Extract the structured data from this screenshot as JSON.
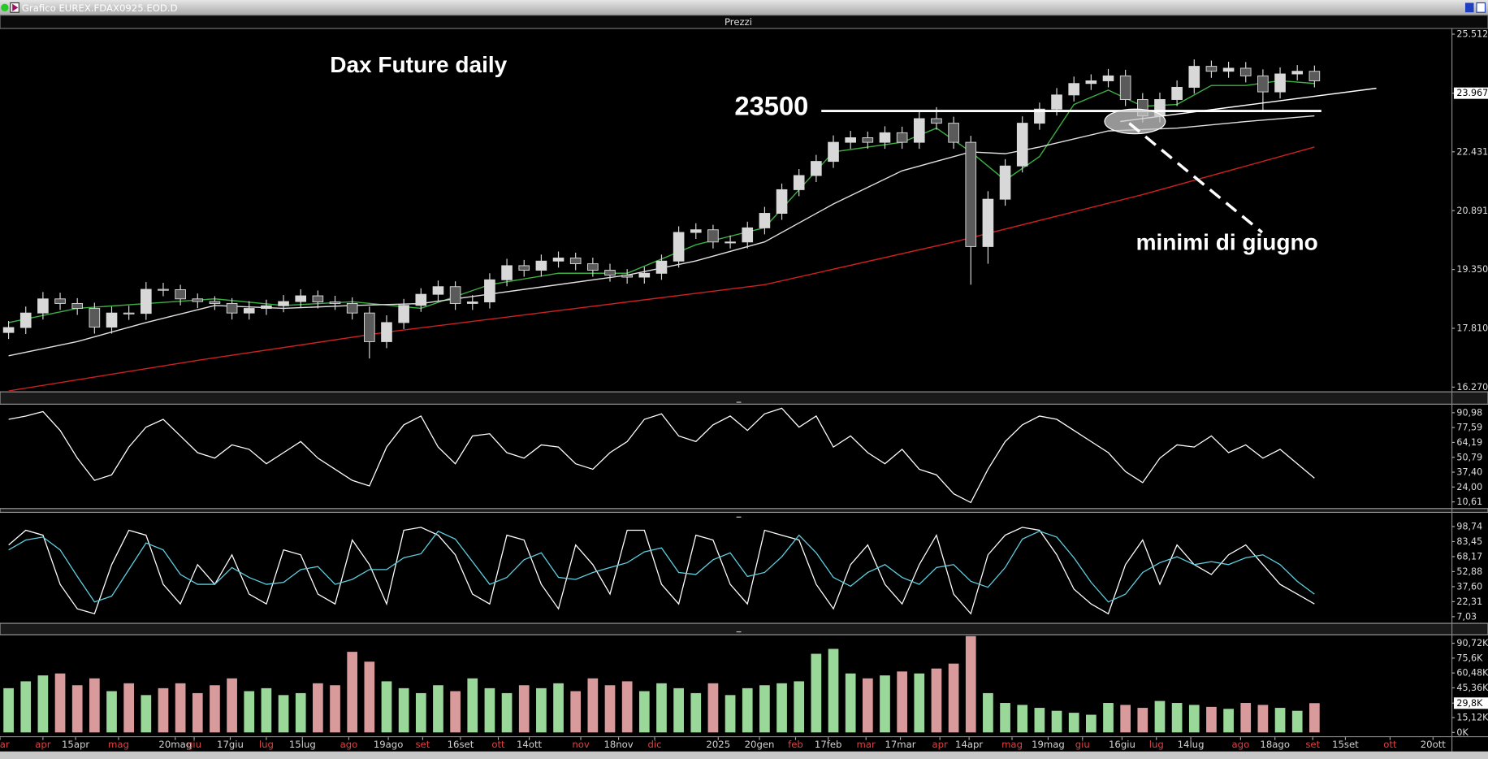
{
  "window": {
    "title": "Grafico EUREX.FDAX0925.EOD.D",
    "panel_title": "Prezzi"
  },
  "chart_data": [
    {
      "type": "candlestick",
      "title": "Dax Future daily",
      "callout": "minimi di giugno",
      "hline": 23500,
      "up_color": "#d8d8d8",
      "down_color": "#5a5a5a",
      "wick_color": "#d8d8d8",
      "xlim": [
        -0.5,
        84
      ],
      "xtick_color": "#d0d0d0",
      "xtick_month_color": "#e04040",
      "xticks": [
        {
          "value": -0.5,
          "label": "mar"
        },
        {
          "value": 2,
          "label": "apr"
        },
        {
          "value": 3.9,
          "label": "15apr"
        },
        {
          "value": 6.4,
          "label": "mag"
        },
        {
          "value": 9.7,
          "label": "20mag"
        },
        {
          "value": 10.8,
          "label": "giu"
        },
        {
          "value": 12.9,
          "label": "17giu"
        },
        {
          "value": 15,
          "label": "lug"
        },
        {
          "value": 17.1,
          "label": "15lug"
        },
        {
          "value": 19.8,
          "label": "ago"
        },
        {
          "value": 22.1,
          "label": "19ago"
        },
        {
          "value": 24.1,
          "label": "set"
        },
        {
          "value": 26.3,
          "label": "16set"
        },
        {
          "value": 28.5,
          "label": "ott"
        },
        {
          "value": 30.3,
          "label": "14ott"
        },
        {
          "value": 33.3,
          "label": "nov"
        },
        {
          "value": 35.5,
          "label": "18nov"
        },
        {
          "value": 37.6,
          "label": "dic"
        },
        {
          "value": 41.3,
          "label": "2025"
        },
        {
          "value": 43.7,
          "label": "20gen"
        },
        {
          "value": 45.8,
          "label": "feb"
        },
        {
          "value": 47.7,
          "label": "17feb"
        },
        {
          "value": 49.9,
          "label": "mar"
        },
        {
          "value": 51.9,
          "label": "17mar"
        },
        {
          "value": 54.2,
          "label": "apr"
        },
        {
          "value": 55.9,
          "label": "14apr"
        },
        {
          "value": 58.4,
          "label": "mag"
        },
        {
          "value": 60.5,
          "label": "19mag"
        },
        {
          "value": 62.5,
          "label": "giu"
        },
        {
          "value": 64.8,
          "label": "16giu"
        },
        {
          "value": 66.8,
          "label": "lug"
        },
        {
          "value": 68.8,
          "label": "14lug"
        },
        {
          "value": 71.7,
          "label": "ago"
        },
        {
          "value": 73.7,
          "label": "18ago"
        },
        {
          "value": 75.9,
          "label": "set"
        },
        {
          "value": 77.8,
          "label": "15set"
        },
        {
          "value": 80.4,
          "label": "ott"
        },
        {
          "value": 82.9,
          "label": "20ott"
        }
      ],
      "ylim": [
        16171,
        25661
      ],
      "yticks": [
        {
          "value": 25512,
          "label": "25.512"
        },
        {
          "value": 23967,
          "label": "23.967"
        },
        {
          "value": 22431,
          "label": "22.431"
        },
        {
          "value": 20891,
          "label": "20.891"
        },
        {
          "value": 19350,
          "label": "19.350"
        },
        {
          "value": 17810,
          "label": "17.810"
        },
        {
          "value": 16270,
          "label": "16.270"
        }
      ],
      "highlight_tick": 1,
      "open": [
        17700,
        17830,
        18210,
        18580,
        18460,
        18330,
        17840,
        18210,
        18200,
        18830,
        18820,
        18580,
        18510,
        18460,
        18210,
        18330,
        18400,
        18510,
        18660,
        18500,
        18460,
        18210,
        17460,
        17960,
        18410,
        18700,
        18900,
        18460,
        18500,
        19080,
        19450,
        19330,
        19570,
        19650,
        19500,
        19330,
        19200,
        19150,
        19250,
        19570,
        20320,
        20390,
        20070,
        20070,
        20440,
        20820,
        21440,
        21810,
        22180,
        22680,
        22800,
        22680,
        22930,
        22680,
        23300,
        23180,
        22680,
        19950,
        21190,
        22060,
        23180,
        23550,
        23920,
        24220,
        24290,
        24420,
        23800,
        23370,
        23800,
        24120,
        24670,
        24540,
        24620,
        24420,
        24000,
        24470,
        24540
      ],
      "high": [
        18000,
        18380,
        18760,
        18740,
        18600,
        18480,
        18380,
        18400,
        19020,
        19000,
        18950,
        18720,
        18650,
        18600,
        18520,
        18560,
        18680,
        18830,
        18800,
        18660,
        18620,
        18380,
        18150,
        18580,
        18860,
        19060,
        19040,
        18680,
        19250,
        19630,
        19600,
        19740,
        19820,
        19790,
        19660,
        19500,
        19360,
        19420,
        19740,
        20480,
        20560,
        20520,
        20240,
        20600,
        20990,
        21600,
        21980,
        22350,
        22860,
        22980,
        22960,
        23100,
        23090,
        23480,
        23600,
        23350,
        22850,
        21400,
        22240,
        23360,
        23720,
        24100,
        24400,
        24460,
        24600,
        24580,
        23970,
        23980,
        24300,
        24850,
        24820,
        24790,
        24780,
        24590,
        24640,
        24700,
        24690
      ],
      "low": [
        17530,
        17660,
        18040,
        18290,
        18160,
        17670,
        17670,
        18030,
        18030,
        18650,
        18410,
        18340,
        18290,
        18040,
        18040,
        18160,
        18230,
        18340,
        18330,
        18290,
        18040,
        17020,
        17290,
        17790,
        18240,
        18530,
        18290,
        18290,
        18330,
        18910,
        19160,
        19160,
        19400,
        19330,
        19160,
        19030,
        18980,
        18980,
        19080,
        19400,
        20150,
        19900,
        19900,
        19900,
        20270,
        20650,
        21270,
        21640,
        22010,
        22510,
        22510,
        22510,
        22510,
        22510,
        23010,
        22510,
        18950,
        19500,
        21020,
        21890,
        23010,
        23380,
        23750,
        24050,
        24120,
        23630,
        23200,
        23200,
        23630,
        23950,
        24370,
        24370,
        24250,
        23500,
        23830,
        24300,
        24120
      ],
      "close": [
        17830,
        18210,
        18580,
        18460,
        18330,
        17840,
        18210,
        18200,
        18830,
        18820,
        18580,
        18510,
        18460,
        18210,
        18330,
        18400,
        18510,
        18660,
        18500,
        18460,
        18210,
        17460,
        17960,
        18410,
        18700,
        18900,
        18460,
        18500,
        19080,
        19450,
        19330,
        19570,
        19650,
        19500,
        19330,
        19200,
        19150,
        19250,
        19570,
        20320,
        20390,
        20070,
        20070,
        20440,
        20820,
        21440,
        21810,
        22180,
        22680,
        22800,
        22680,
        22930,
        22680,
        23300,
        23180,
        22680,
        19950,
        21190,
        22060,
        23180,
        23550,
        23920,
        24220,
        24290,
        24420,
        23800,
        23370,
        23800,
        24120,
        24670,
        24540,
        24620,
        24420,
        24000,
        24470,
        24540,
        24290
      ],
      "lines": [
        {
          "color": "#3cb043",
          "x": [
            0,
            4,
            8,
            12,
            16,
            20,
            24,
            28,
            32,
            36,
            40,
            44,
            48,
            52,
            54,
            56,
            58,
            60,
            62,
            64,
            66,
            68,
            70,
            72,
            74,
            76
          ],
          "values": [
            17959,
            18332,
            18456,
            18580,
            18406,
            18506,
            18332,
            18953,
            19251,
            19251,
            19996,
            20443,
            22430,
            22679,
            23051,
            22430,
            21685,
            22306,
            23672,
            24045,
            23623,
            23672,
            24169,
            24169,
            24293,
            24219
          ]
        },
        {
          "color": "#e0e0e0",
          "x": [
            0,
            4,
            8,
            12,
            16,
            20,
            24,
            28,
            32,
            36,
            40,
            44,
            48,
            52,
            56,
            58,
            60,
            64,
            68,
            72,
            76
          ],
          "values": [
            17090,
            17462,
            17959,
            18406,
            18332,
            18406,
            18456,
            18704,
            18953,
            19201,
            19574,
            20071,
            21064,
            21934,
            22430,
            22381,
            22555,
            22977,
            23051,
            23225,
            23374
          ]
        },
        {
          "color": "#d02020",
          "x": [
            0,
            11,
            22,
            33,
            44,
            55,
            66,
            76
          ],
          "values": [
            16170,
            16970,
            17710,
            18330,
            18950,
            20070,
            21310,
            22555
          ]
        }
      ],
      "trendline": {
        "x": [
          64.7,
          79.6
        ],
        "values": [
          23225,
          24095
        ]
      }
    },
    {
      "type": "line",
      "ylim": [
        5.48,
        96.97
      ],
      "yticks": [
        {
          "value": 90.98,
          "label": "90,98"
        },
        {
          "value": 77.59,
          "label": "77,59"
        },
        {
          "value": 64.19,
          "label": "64,19"
        },
        {
          "value": 50.79,
          "label": "50,79"
        },
        {
          "value": 37.4,
          "label": "37,40"
        },
        {
          "value": 24,
          "label": "24,00"
        },
        {
          "value": 10.61,
          "label": "10,61"
        }
      ],
      "series": [
        {
          "color": "#ffffff",
          "values": [
            85,
            88,
            92,
            75,
            50,
            30,
            35,
            60,
            78,
            85,
            70,
            55,
            50,
            62,
            58,
            45,
            55,
            65,
            50,
            40,
            30,
            25,
            60,
            80,
            88,
            60,
            45,
            70,
            72,
            55,
            50,
            62,
            60,
            45,
            40,
            55,
            65,
            85,
            90,
            70,
            65,
            80,
            88,
            75,
            90,
            95,
            78,
            88,
            60,
            70,
            55,
            45,
            58,
            40,
            35,
            18,
            10,
            40,
            65,
            80,
            88,
            85,
            75,
            65,
            55,
            38,
            28,
            50,
            62,
            60,
            70,
            55,
            62,
            50,
            58,
            45,
            32
          ]
        }
      ]
    },
    {
      "type": "line",
      "ylim": [
        1.24,
        112.26
      ],
      "yticks": [
        {
          "value": 98.74,
          "label": "98,74"
        },
        {
          "value": 83.45,
          "label": "83,45"
        },
        {
          "value": 68.17,
          "label": "68,17"
        },
        {
          "value": 52.88,
          "label": "52,88"
        },
        {
          "value": 37.6,
          "label": "37,60"
        },
        {
          "value": 22.31,
          "label": "22,31"
        },
        {
          "value": 7.03,
          "label": "7,03"
        }
      ],
      "series": [
        {
          "color": "#ffffff",
          "values": [
            80,
            95,
            90,
            40,
            15,
            10,
            60,
            95,
            90,
            40,
            20,
            60,
            40,
            70,
            30,
            20,
            75,
            70,
            30,
            20,
            85,
            60,
            20,
            95,
            98,
            90,
            70,
            30,
            20,
            90,
            85,
            40,
            15,
            80,
            60,
            30,
            95,
            95,
            40,
            20,
            90,
            85,
            40,
            20,
            95,
            90,
            85,
            40,
            15,
            60,
            80,
            40,
            20,
            60,
            90,
            30,
            10,
            70,
            90,
            98,
            95,
            70,
            35,
            20,
            10,
            60,
            85,
            40,
            80,
            60,
            50,
            70,
            80,
            60,
            40,
            30,
            20
          ]
        },
        {
          "color": "#5fd0e0",
          "values": [
            75,
            85,
            88,
            75,
            48,
            22,
            28,
            55,
            82,
            75,
            50,
            40,
            40,
            57,
            47,
            40,
            42,
            55,
            58,
            40,
            45,
            55,
            55,
            67,
            71,
            94,
            86,
            63,
            40,
            47,
            65,
            72,
            47,
            45,
            52,
            57,
            62,
            73,
            77,
            52,
            50,
            65,
            72,
            48,
            52,
            68,
            90,
            72,
            47,
            38,
            52,
            60,
            47,
            40,
            57,
            60,
            43,
            37,
            57,
            86,
            94,
            88,
            67,
            42,
            22,
            30,
            52,
            62,
            68,
            60,
            63,
            60,
            67,
            70,
            60,
            43,
            30
          ]
        }
      ]
    },
    {
      "type": "bar",
      "up_color": "#9ad89a",
      "down_color": "#d89a9a",
      "ylim": [
        -3860,
        98440
      ],
      "yticks": [
        {
          "value": 90720,
          "label": "90,72K"
        },
        {
          "value": 75600,
          "label": "75,6K"
        },
        {
          "value": 60480,
          "label": "60,48K"
        },
        {
          "value": 45360,
          "label": "45,36K"
        },
        {
          "value": 29800,
          "label": "29,8K"
        },
        {
          "value": 15120,
          "label": "15,12K"
        },
        {
          "value": 0,
          "label": "0K"
        }
      ],
      "highlight_tick": 4,
      "values": [
        45000,
        52000,
        58000,
        60000,
        48000,
        55000,
        42000,
        50000,
        38000,
        45000,
        50000,
        40000,
        48000,
        55000,
        42000,
        45000,
        38000,
        40000,
        50000,
        48000,
        82000,
        72000,
        52000,
        45000,
        40000,
        48000,
        42000,
        55000,
        45000,
        40000,
        48000,
        45000,
        50000,
        42000,
        55000,
        48000,
        52000,
        42000,
        50000,
        45000,
        40000,
        50000,
        38000,
        45000,
        48000,
        50000,
        52000,
        80000,
        85000,
        60000,
        55000,
        58000,
        62000,
        60000,
        65000,
        70000,
        98000,
        40000,
        30000,
        28000,
        25000,
        22000,
        20000,
        18000,
        30000,
        28000,
        25000,
        32000,
        30000,
        28000,
        26000,
        24000,
        30000,
        28000,
        25000,
        22000,
        29800
      ]
    }
  ]
}
